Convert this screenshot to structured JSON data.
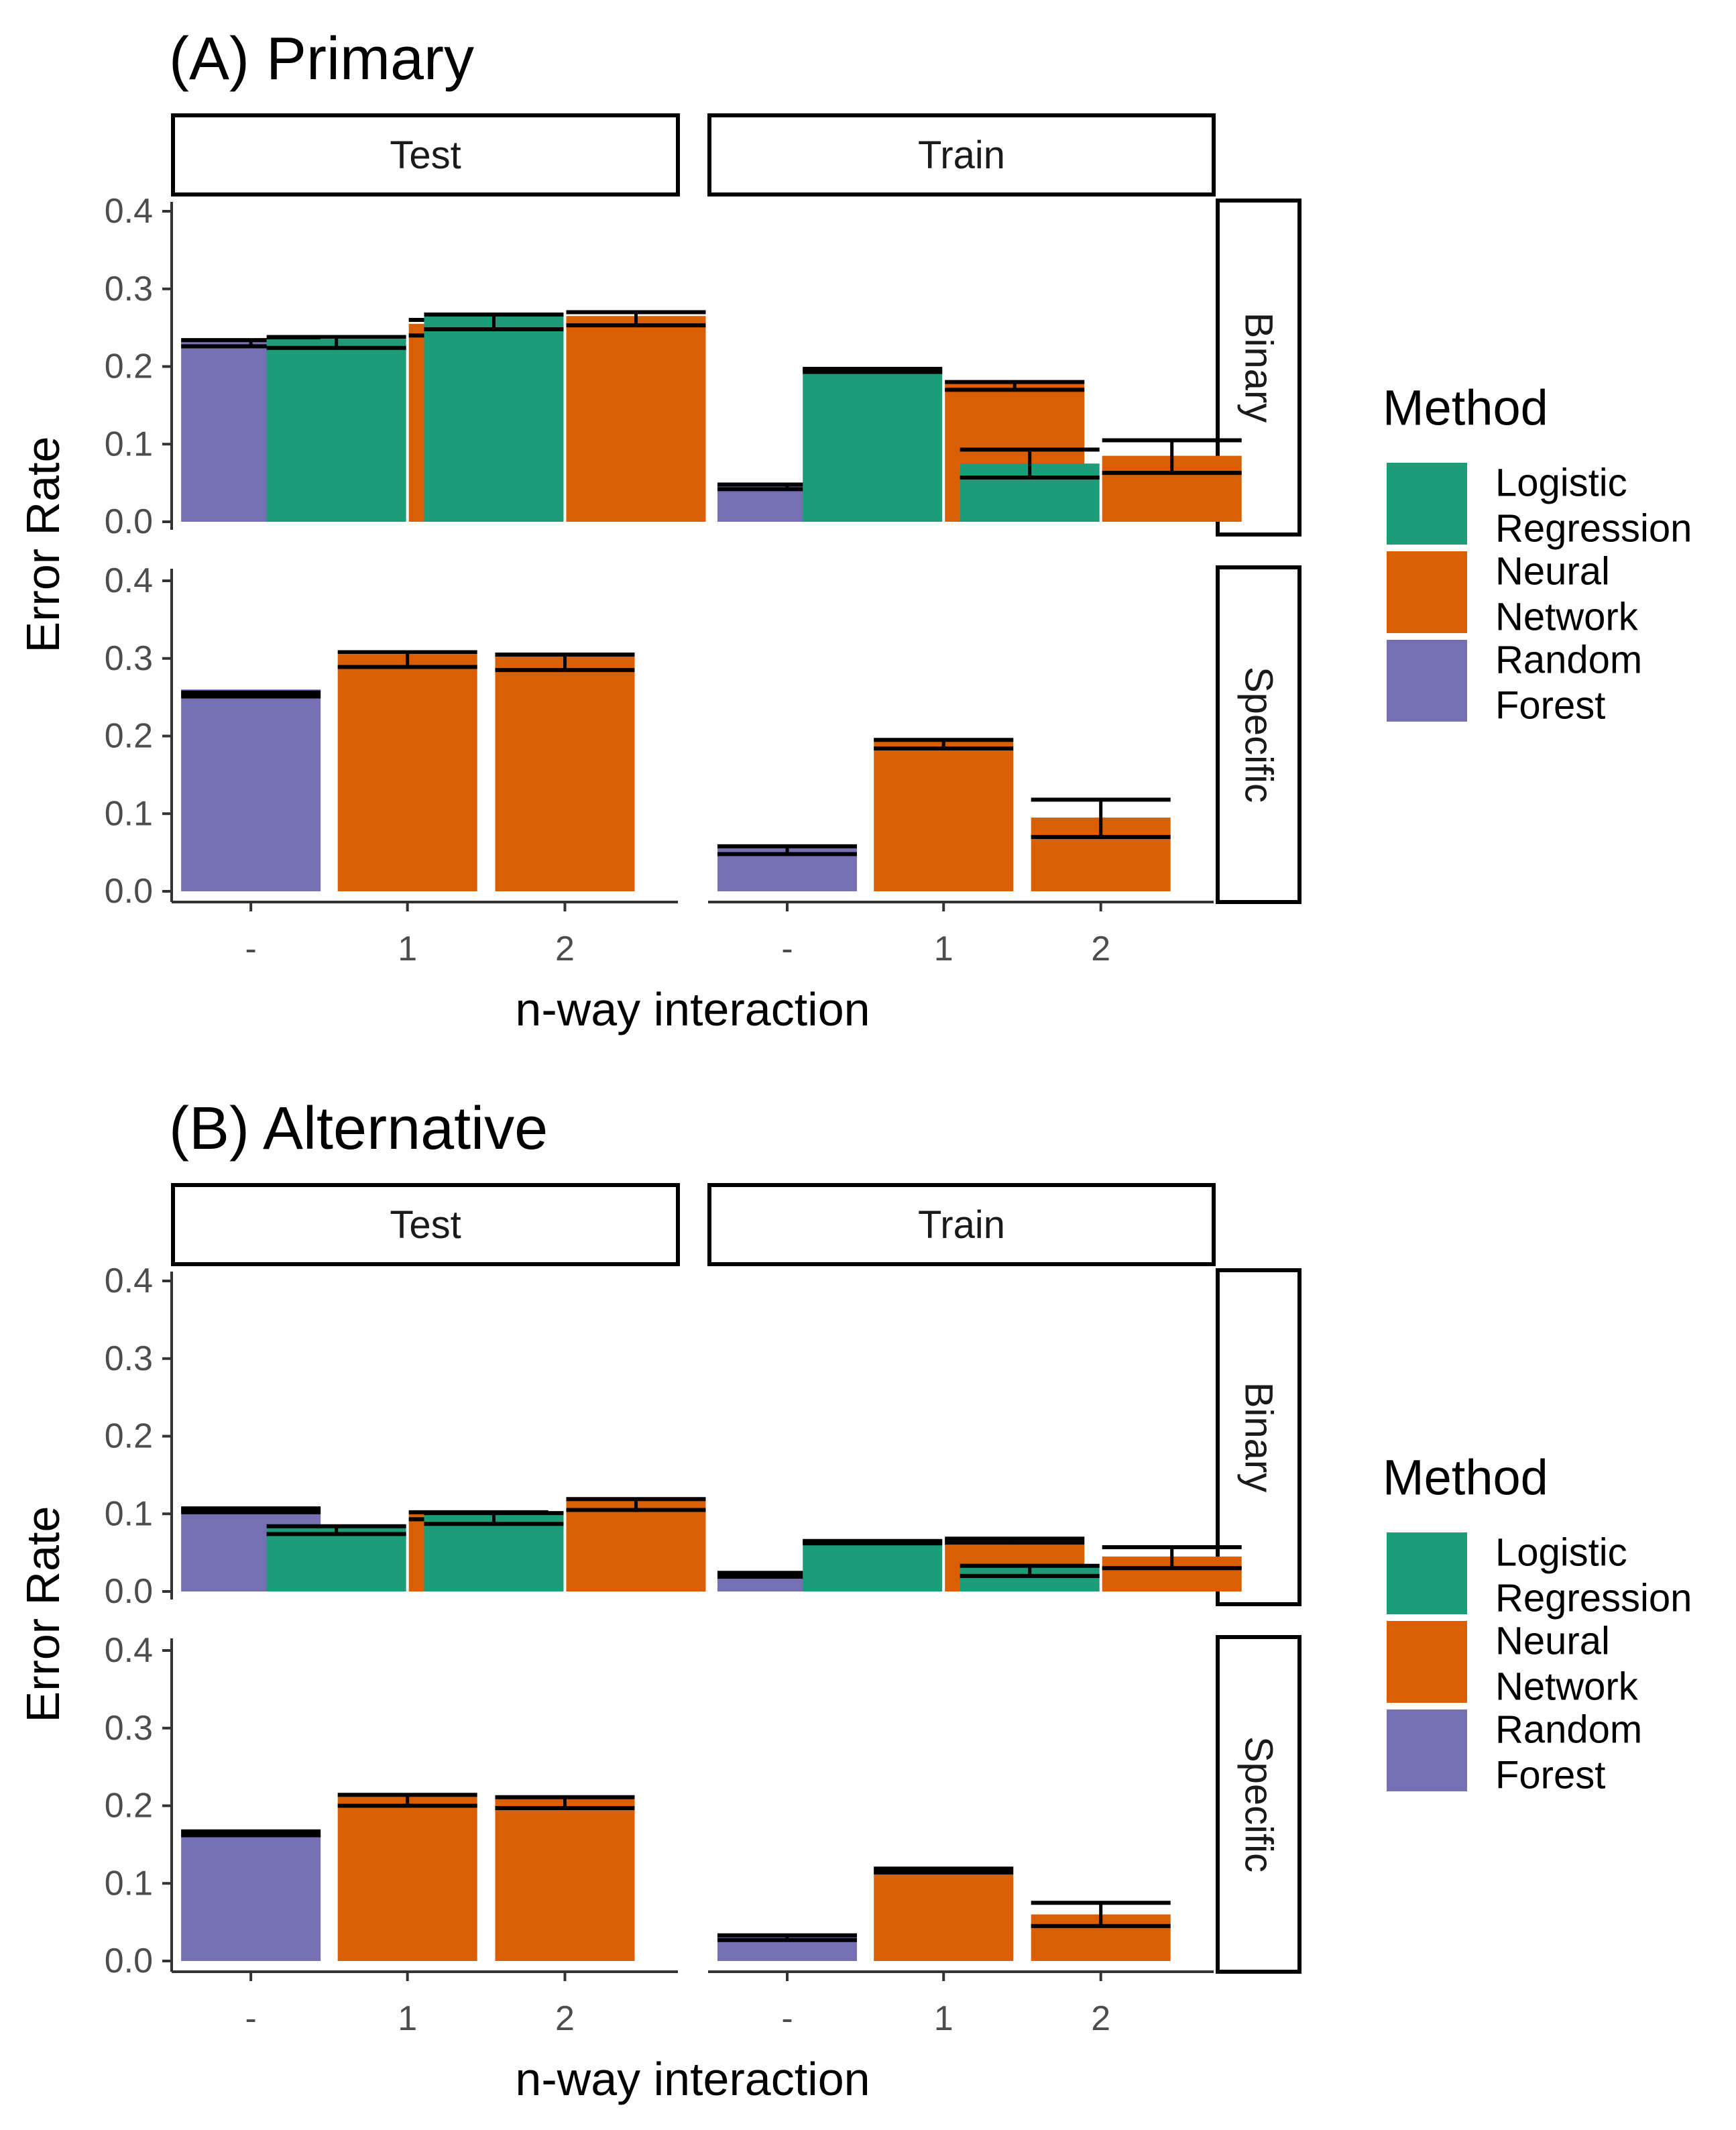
{
  "chart_data": [
    {
      "type": "bar",
      "title": "(A) Primary",
      "xlabel": "n-way interaction",
      "ylabel": "Error Rate",
      "ylim": [
        0,
        0.4
      ],
      "yticks": [
        "0.0",
        "0.1",
        "0.2",
        "0.3",
        "0.4"
      ],
      "categories": [
        "-",
        "1",
        "2"
      ],
      "columns": [
        "Test",
        "Train"
      ],
      "rows": [
        "Binary",
        "Specific"
      ],
      "legend": {
        "title": "Method",
        "items": [
          {
            "line1": "Logistic",
            "line2": "Regression",
            "color": "#1b9e77"
          },
          {
            "line1": "Neural",
            "line2": "Network",
            "color": "#d95f02"
          },
          {
            "line1": "Random",
            "line2": "Forest",
            "color": "#7570b3"
          }
        ]
      },
      "panels": [
        {
          "row": "Binary",
          "column": "Test",
          "bars": [
            {
              "category": "-",
              "method": "Random Forest",
              "value": 0.235,
              "lower": 0.226,
              "upper": 0.234
            },
            {
              "category": "1",
              "method": "Logistic Regression",
              "value": 0.235,
              "lower": 0.224,
              "upper": 0.238
            },
            {
              "category": "1",
              "method": "Neural Network",
              "value": 0.255,
              "lower": 0.24,
              "upper": 0.26
            },
            {
              "category": "2",
              "method": "Logistic Regression",
              "value": 0.265,
              "lower": 0.248,
              "upper": 0.267
            },
            {
              "category": "2",
              "method": "Neural Network",
              "value": 0.265,
              "lower": 0.253,
              "upper": 0.27
            }
          ]
        },
        {
          "row": "Binary",
          "column": "Train",
          "bars": [
            {
              "category": "-",
              "method": "Random Forest",
              "value": 0.05,
              "lower": 0.042,
              "upper": 0.048
            },
            {
              "category": "1",
              "method": "Logistic Regression",
              "value": 0.198,
              "lower": 0.193,
              "upper": 0.197
            },
            {
              "category": "1",
              "method": "Neural Network",
              "value": 0.18,
              "lower": 0.17,
              "upper": 0.18
            },
            {
              "category": "2",
              "method": "Logistic Regression",
              "value": 0.075,
              "lower": 0.057,
              "upper": 0.093
            },
            {
              "category": "2",
              "method": "Neural Network",
              "value": 0.085,
              "lower": 0.063,
              "upper": 0.105
            }
          ]
        },
        {
          "row": "Specific",
          "column": "Test",
          "bars": [
            {
              "category": "-",
              "method": "Random Forest",
              "value": 0.26,
              "lower": 0.251,
              "upper": 0.256
            },
            {
              "category": "1",
              "method": "Neural Network",
              "value": 0.305,
              "lower": 0.289,
              "upper": 0.308
            },
            {
              "category": "2",
              "method": "Neural Network",
              "value": 0.305,
              "lower": 0.285,
              "upper": 0.305
            }
          ]
        },
        {
          "row": "Specific",
          "column": "Train",
          "bars": [
            {
              "category": "-",
              "method": "Random Forest",
              "value": 0.06,
              "lower": 0.048,
              "upper": 0.058
            },
            {
              "category": "1",
              "method": "Neural Network",
              "value": 0.197,
              "lower": 0.184,
              "upper": 0.195
            },
            {
              "category": "2",
              "method": "Neural Network",
              "value": 0.095,
              "lower": 0.07,
              "upper": 0.118
            }
          ]
        }
      ]
    },
    {
      "type": "bar",
      "title": "(B) Alternative",
      "xlabel": "n-way interaction",
      "ylabel": "Error Rate",
      "ylim": [
        0,
        0.4
      ],
      "yticks": [
        "0.0",
        "0.1",
        "0.2",
        "0.3",
        "0.4"
      ],
      "categories": [
        "-",
        "1",
        "2"
      ],
      "columns": [
        "Test",
        "Train"
      ],
      "rows": [
        "Binary",
        "Specific"
      ],
      "legend": {
        "title": "Method",
        "items": [
          {
            "line1": "Logistic",
            "line2": "Regression",
            "color": "#1b9e77"
          },
          {
            "line1": "Neural",
            "line2": "Network",
            "color": "#d95f02"
          },
          {
            "line1": "Random",
            "line2": "Forest",
            "color": "#7570b3"
          }
        ]
      },
      "panels": [
        {
          "row": "Binary",
          "column": "Test",
          "bars": [
            {
              "category": "-",
              "method": "Random Forest",
              "value": 0.108,
              "lower": 0.102,
              "upper": 0.107
            },
            {
              "category": "1",
              "method": "Logistic Regression",
              "value": 0.085,
              "lower": 0.074,
              "upper": 0.084
            },
            {
              "category": "1",
              "method": "Neural Network",
              "value": 0.103,
              "lower": 0.093,
              "upper": 0.102
            },
            {
              "category": "2",
              "method": "Logistic Regression",
              "value": 0.103,
              "lower": 0.087,
              "upper": 0.101
            },
            {
              "category": "2",
              "method": "Neural Network",
              "value": 0.118,
              "lower": 0.105,
              "upper": 0.119
            }
          ]
        },
        {
          "row": "Binary",
          "column": "Train",
          "bars": [
            {
              "category": "-",
              "method": "Random Forest",
              "value": 0.025,
              "lower": 0.019,
              "upper": 0.024
            },
            {
              "category": "1",
              "method": "Logistic Regression",
              "value": 0.065,
              "lower": 0.062,
              "upper": 0.065
            },
            {
              "category": "1",
              "method": "Neural Network",
              "value": 0.07,
              "lower": 0.063,
              "upper": 0.068
            },
            {
              "category": "2",
              "method": "Logistic Regression",
              "value": 0.035,
              "lower": 0.02,
              "upper": 0.033
            },
            {
              "category": "2",
              "method": "Neural Network",
              "value": 0.045,
              "lower": 0.03,
              "upper": 0.057
            }
          ]
        },
        {
          "row": "Specific",
          "column": "Test",
          "bars": [
            {
              "category": "-",
              "method": "Random Forest",
              "value": 0.168,
              "lower": 0.162,
              "upper": 0.167
            },
            {
              "category": "1",
              "method": "Neural Network",
              "value": 0.212,
              "lower": 0.2,
              "upper": 0.214
            },
            {
              "category": "2",
              "method": "Neural Network",
              "value": 0.21,
              "lower": 0.197,
              "upper": 0.211
            }
          ]
        },
        {
          "row": "Specific",
          "column": "Train",
          "bars": [
            {
              "category": "-",
              "method": "Random Forest",
              "value": 0.035,
              "lower": 0.027,
              "upper": 0.033
            },
            {
              "category": "1",
              "method": "Neural Network",
              "value": 0.12,
              "lower": 0.114,
              "upper": 0.119
            },
            {
              "category": "2",
              "method": "Neural Network",
              "value": 0.06,
              "lower": 0.045,
              "upper": 0.075
            }
          ]
        }
      ]
    }
  ]
}
